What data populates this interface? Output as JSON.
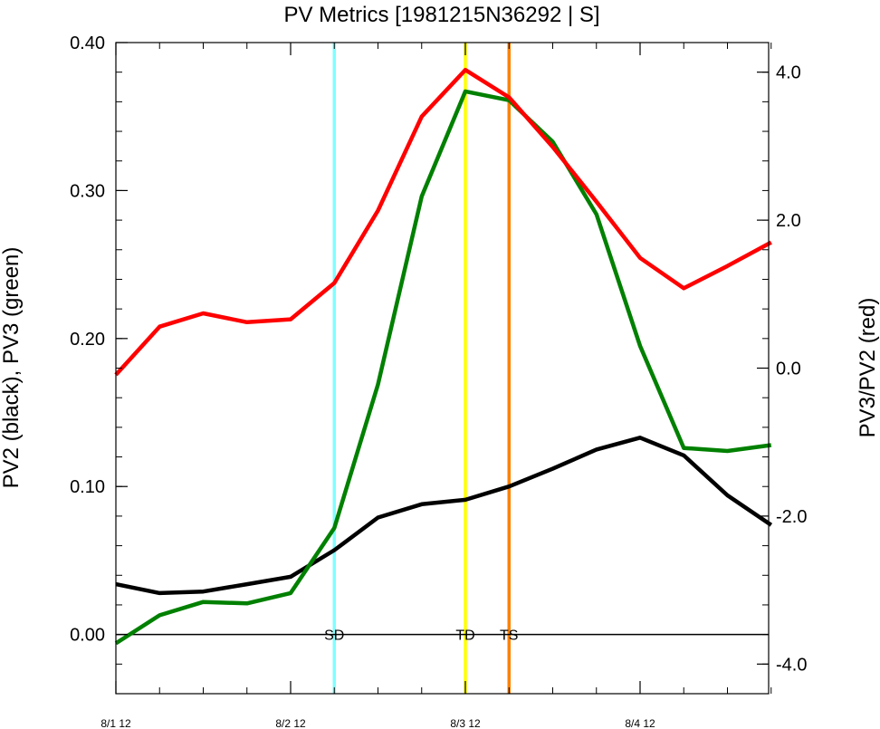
{
  "chart_data": {
    "type": "line",
    "title": "PV Metrics [1981215N36292 | S]",
    "ylabel_left": "PV2 (black), PV3 (green)",
    "ylabel_right": "PV3/PV2 (red)",
    "x_tick_labels": [
      "8/1 12",
      "8/2 12",
      "8/3 12",
      "8/4 12"
    ],
    "left_axis": {
      "ylim": [
        -0.04,
        0.4
      ],
      "ticks": [
        "0.00",
        "0.10",
        "0.20",
        "0.30",
        "0.40"
      ]
    },
    "right_axis": {
      "ylim": [
        -4.4,
        4.4
      ],
      "ticks": [
        "-4.0",
        "-2.0",
        "0.0",
        "2.0",
        "4.0"
      ]
    },
    "grid": false,
    "series": [
      {
        "name": "PV2",
        "axis": "left",
        "color": "#000000",
        "x": [
          0,
          0.25,
          0.5,
          0.75,
          1,
          1.25,
          1.5,
          1.75,
          2,
          2.25,
          2.5,
          2.75,
          3,
          3.25,
          3.5,
          3.75
        ],
        "y": [
          0.034,
          0.028,
          0.029,
          0.034,
          0.039,
          0.057,
          0.079,
          0.088,
          0.091,
          0.1,
          0.112,
          0.125,
          0.133,
          0.121,
          0.094,
          0.074
        ]
      },
      {
        "name": "PV3",
        "axis": "left",
        "color": "#008000",
        "x": [
          0,
          0.25,
          0.5,
          0.75,
          1,
          1.25,
          1.5,
          1.75,
          2,
          2.25,
          2.5,
          2.75,
          3,
          3.25,
          3.5,
          3.75
        ],
        "y": [
          -0.006,
          0.013,
          0.022,
          0.021,
          0.028,
          0.072,
          0.169,
          0.296,
          0.367,
          0.361,
          0.333,
          0.284,
          0.195,
          0.126,
          0.124,
          0.128
        ]
      },
      {
        "name": "PV3/PV2",
        "axis": "right",
        "color": "#ff0000",
        "x": [
          0,
          0.25,
          0.5,
          0.75,
          1,
          1.25,
          1.5,
          1.75,
          2,
          2.25,
          2.5,
          2.75,
          3,
          3.25,
          3.5,
          3.75
        ],
        "y": [
          -0.09,
          0.56,
          0.74,
          0.62,
          0.66,
          1.15,
          2.13,
          3.4,
          4.03,
          3.66,
          2.99,
          2.25,
          1.49,
          1.08,
          1.38,
          1.7
        ]
      }
    ],
    "zero_line": {
      "value": 0,
      "color": "#000000"
    },
    "markers": [
      {
        "label": "SD",
        "x": 1.25,
        "color": "#80ffff"
      },
      {
        "label": "TD",
        "x": 2.0,
        "color": "#ffff00"
      },
      {
        "label": "TS",
        "x": 2.25,
        "color": "#ff8000"
      }
    ]
  }
}
